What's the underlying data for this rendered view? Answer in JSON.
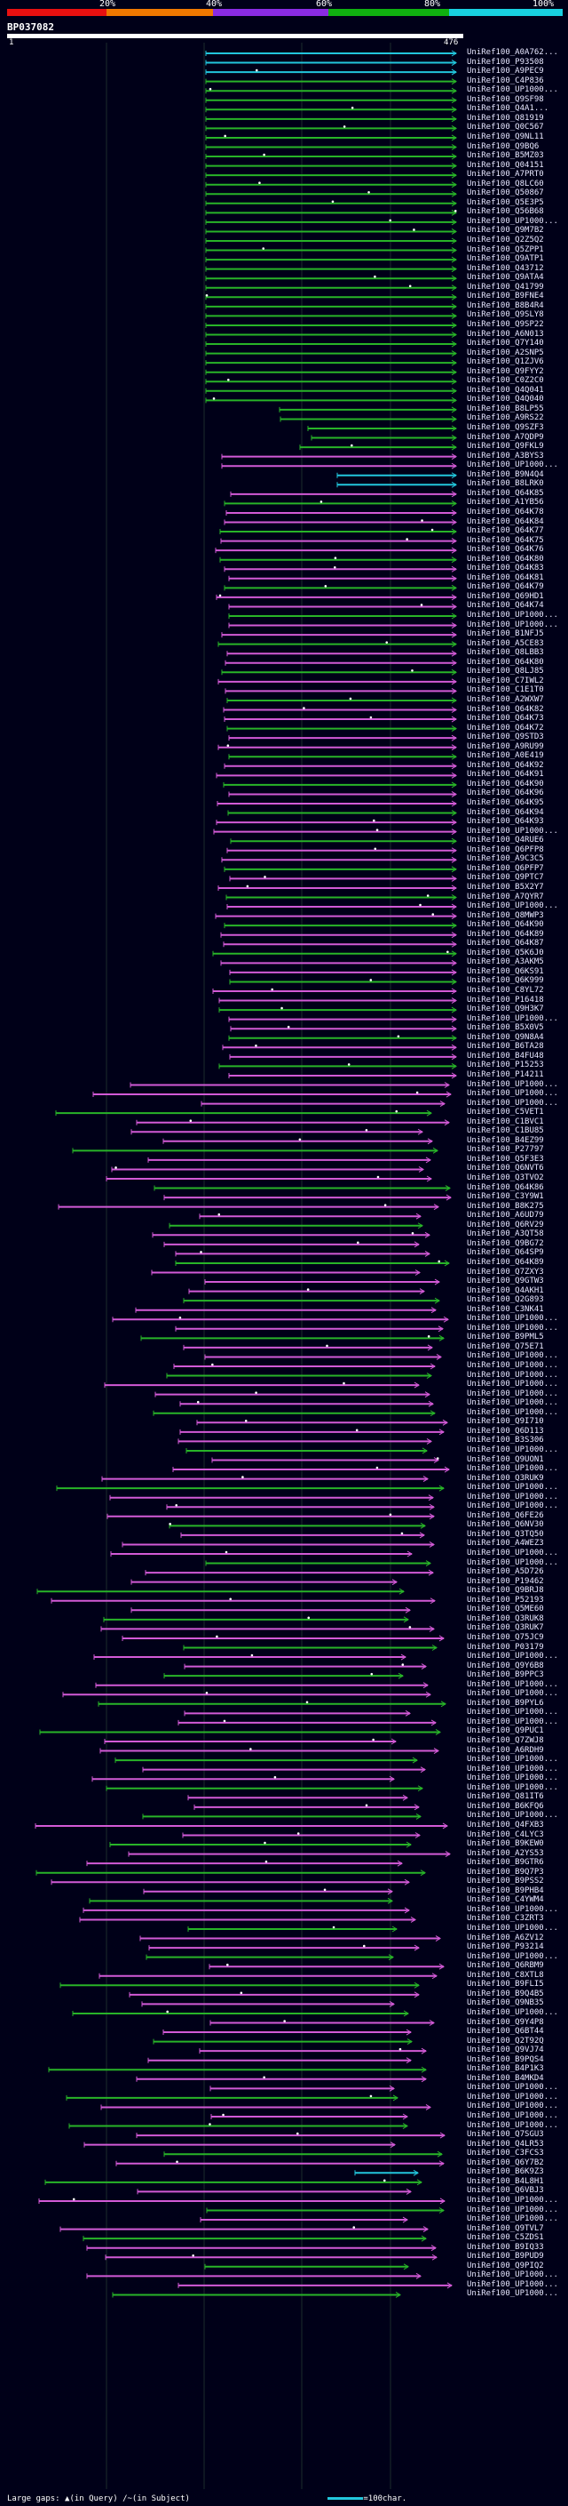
{
  "legend": {
    "percent_ticks": [
      "20%",
      "40%",
      "60%",
      "80%",
      "100%"
    ],
    "colors": [
      "#e81010",
      "#f07800",
      "#8a2be2",
      "#10b010",
      "#18d0e0"
    ]
  },
  "query": {
    "name": "BP037082",
    "start": "1",
    "end": "476"
  },
  "colors": {
    "magenta": "#d25ad6",
    "green": "#28b428",
    "cyan": "#22c6dc",
    "grid": "#1c2c2c"
  },
  "hits": [
    "UniRef100_A0A762...",
    "UniRef100_P93508",
    "UniRef100_A9PEC9",
    "UniRef100_C4P836",
    "UniRef100_UP1000...",
    "UniRef100_Q9SF98",
    "UniRef100_Q4A1...",
    "UniRef100_Q81919",
    "UniRef100_Q0C567",
    "UniRef100_Q9NL11",
    "UniRef100_Q9BQ6",
    "UniRef100_B5MZ03",
    "UniRef100_Q04151",
    "UniRef100_A7PRT0",
    "UniRef100_Q8LC60",
    "UniRef100_Q50867",
    "UniRef100_Q5E3P5",
    "UniRef100_Q56B68",
    "UniRef100_UP1000...",
    "UniRef100_Q9M7B2",
    "UniRef100_Q2Z5Q2",
    "UniRef100_Q5ZPP1",
    "UniRef100_Q9ATP1",
    "UniRef100_Q43712",
    "UniRef100_Q9ATA4",
    "UniRef100_Q41799",
    "UniRef100_B9FNE4",
    "UniRef100_B8B4R4",
    "UniRef100_Q9SLY8",
    "UniRef100_Q9SP22",
    "UniRef100_A6N013",
    "UniRef100_Q7Y140",
    "UniRef100_A2SNP5",
    "UniRef100_Q1ZJV6",
    "UniRef100_Q9FYY2",
    "UniRef100_C0Z2C0",
    "UniRef100_Q4Q041",
    "UniRef100_Q4Q040",
    "UniRef100_B8LP55",
    "UniRef100_A9RS22",
    "UniRef100_Q9SZF3",
    "UniRef100_A7QDP9",
    "UniRef100_Q9FKL9",
    "UniRef100_A3BYS3",
    "UniRef100_UP1000...",
    "UniRef100_B9N4Q4",
    "UniRef100_B8LRK0",
    "UniRef100_Q64K85",
    "UniRef100_A1YB56",
    "UniRef100_Q64K78",
    "UniRef100_Q64K84",
    "UniRef100_Q64K77",
    "UniRef100_Q64K75",
    "UniRef100_Q64K76",
    "UniRef100_Q64K80",
    "UniRef100_Q64K83",
    "UniRef100_Q64K81",
    "UniRef100_Q64K79",
    "UniRef100_Q69HD1",
    "UniRef100_Q64K74",
    "UniRef100_UP1000...",
    "UniRef100_UP1000...",
    "UniRef100_B1NFJ5",
    "UniRef100_A5CE83",
    "UniRef100_Q8LBB3",
    "UniRef100_Q64K80",
    "UniRef100_Q8LJ85",
    "UniRef100_C7IWL2",
    "UniRef100_C1E1T0",
    "UniRef100_A2WXW7",
    "UniRef100_Q64K82",
    "UniRef100_Q64K73",
    "UniRef100_Q64K72",
    "UniRef100_Q9STD3",
    "UniRef100_A9RU99",
    "UniRef100_A0E419",
    "UniRef100_Q64K92",
    "UniRef100_Q64K91",
    "UniRef100_Q64K90",
    "UniRef100_Q64K96",
    "UniRef100_Q64K95",
    "UniRef100_Q64K94",
    "UniRef100_Q64K93",
    "UniRef100_UP1000...",
    "UniRef100_Q4RUE6",
    "UniRef100_Q6PFP8",
    "UniRef100_A9C3C5",
    "UniRef100_Q6PFP7",
    "UniRef100_Q9PTC7",
    "UniRef100_B5X2Y7",
    "UniRef100_A7QYR7",
    "UniRef100_UP1000...",
    "UniRef100_Q8MWP3",
    "UniRef100_Q64K90",
    "UniRef100_Q64K89",
    "UniRef100_Q64K87",
    "UniRef100_Q5K6J0",
    "UniRef100_A3AKM5",
    "UniRef100_Q6KS91",
    "UniRef100_Q6K999",
    "UniRef100_C8YL72",
    "UniRef100_P16418",
    "UniRef100_Q9H3K7",
    "UniRef100_UP1000...",
    "UniRef100_B5X0V5",
    "UniRef100_Q9N8A4",
    "UniRef100_B6TA28",
    "UniRef100_B4FU48",
    "UniRef100_P15253",
    "UniRef100_P14211",
    "UniRef100_UP1000...",
    "UniRef100_UP1000...",
    "UniRef100_UP1000...",
    "UniRef100_C5VET1",
    "UniRef100_C1BVC1",
    "UniRef100_C1BU85",
    "UniRef100_B4EZ99",
    "UniRef100_P27797",
    "UniRef100_Q5F3E3",
    "UniRef100_Q6NVT6",
    "UniRef100_Q3TVO2",
    "UniRef100_Q64K86",
    "UniRef100_C3Y9W1",
    "UniRef100_B8K275",
    "UniRef100_A6UD79",
    "UniRef100_Q6RV29",
    "UniRef100_A3QT58",
    "UniRef100_Q9BG72",
    "UniRef100_Q64SP9",
    "UniRef100_Q64K89",
    "UniRef100_Q7ZXY3",
    "UniRef100_Q9GTW3",
    "UniRef100_Q4AKH1",
    "UniRef100_Q2G893",
    "UniRef100_C3NK41",
    "UniRef100_UP1000...",
    "UniRef100_UP1000...",
    "UniRef100_B9PML5",
    "UniRef100_Q75E71",
    "UniRef100_UP1000...",
    "UniRef100_UP1000...",
    "UniRef100_UP1000...",
    "UniRef100_UP1000...",
    "UniRef100_UP1000...",
    "UniRef100_UP1000...",
    "UniRef100_UP1000...",
    "UniRef100_Q9I710",
    "UniRef100_Q6D113",
    "UniRef100_B3S306",
    "UniRef100_UP1000...",
    "UniRef100_Q9UON1",
    "UniRef100_UP1000...",
    "UniRef100_Q3RUK9",
    "UniRef100_UP1000...",
    "UniRef100_UP1000...",
    "UniRef100_UP1000...",
    "UniRef100_Q6FE26",
    "UniRef100_Q6NV30",
    "UniRef100_Q3TQ50",
    "UniRef100_A4WEZ3",
    "UniRef100_UP1000...",
    "UniRef100_UP1000...",
    "UniRef100_A5D726",
    "UniRef100_P19462",
    "UniRef100_Q9BRJ8",
    "UniRef100_P52193",
    "UniRef100_Q5ME60",
    "UniRef100_Q3RUK8",
    "UniRef100_Q3RUK7",
    "UniRef100_Q75JC9",
    "UniRef100_P03179",
    "UniRef100_UP1000...",
    "UniRef100_Q9Y6B8",
    "UniRef100_B9PPC3",
    "UniRef100_UP1000...",
    "UniRef100_UP1000...",
    "UniRef100_B9PYL6",
    "UniRef100_UP1000...",
    "UniRef100_UP1000...",
    "UniRef100_Q9PUC1",
    "UniRef100_Q7ZWJ8",
    "UniRef100_A6RDH9",
    "UniRef100_UP1000...",
    "UniRef100_UP1000...",
    "UniRef100_UP1000...",
    "UniRef100_UP1000...",
    "UniRef100_Q81IT6",
    "UniRef100_B6KFQ6",
    "UniRef100_UP1000...",
    "UniRef100_Q4FXB3",
    "UniRef100_C4LYC3",
    "UniRef100_B9KEW0",
    "UniRef100_A2YS53",
    "UniRef100_B9GTR6",
    "UniRef100_B9Q7P3",
    "UniRef100_B9PSS2",
    "UniRef100_B9PHB4",
    "UniRef100_C4YWM4",
    "UniRef100_UP1000...",
    "UniRef100_C3ZRT3",
    "UniRef100_UP1000...",
    "UniRef100_A6ZV12",
    "UniRef100_P93214",
    "UniRef100_UP1000...",
    "UniRef100_Q6RBM9",
    "UniRef100_C8XTL8",
    "UniRef100_B9FLI5",
    "UniRef100_B9Q4B5",
    "UniRef100_Q9NB35",
    "UniRef100_UP1000...",
    "UniRef100_Q9Y4P8",
    "UniRef100_Q6BT44",
    "UniRef100_Q2T92Q",
    "UniRef100_Q9VJ74",
    "UniRef100_B9PQS4",
    "UniRef100_B4P1K3",
    "UniRef100_B4MKD4",
    "UniRef100_UP1000...",
    "UniRef100_UP1000...",
    "UniRef100_UP1000...",
    "UniRef100_UP1000...",
    "UniRef100_UP1000...",
    "UniRef100_Q7SGU3",
    "UniRef100_Q4LR53",
    "UniRef100_C3FCS3",
    "UniRef100_Q6Y7B2",
    "UniRef100_B6K9Z3",
    "UniRef100_B4L8H1",
    "UniRef100_Q6VBJ3",
    "UniRef100_UP1000...",
    "UniRef100_UP1000...",
    "UniRef100_UP1000...",
    "UniRef100_Q9TVL7",
    "UniRef100_C5ZDS1",
    "UniRef100_B9IQ33",
    "UniRef100_B9PUD9",
    "UniRef100_Q9PIQ2",
    "UniRef100_UP1000...",
    "UniRef100_UP1000...",
    "UniRef100_UP1000..."
  ],
  "footer": {
    "large_gaps": "Large gaps:",
    "in_query": "(in Query)",
    "in_subject": "(in Subject)",
    "scale_label": "=100char."
  }
}
